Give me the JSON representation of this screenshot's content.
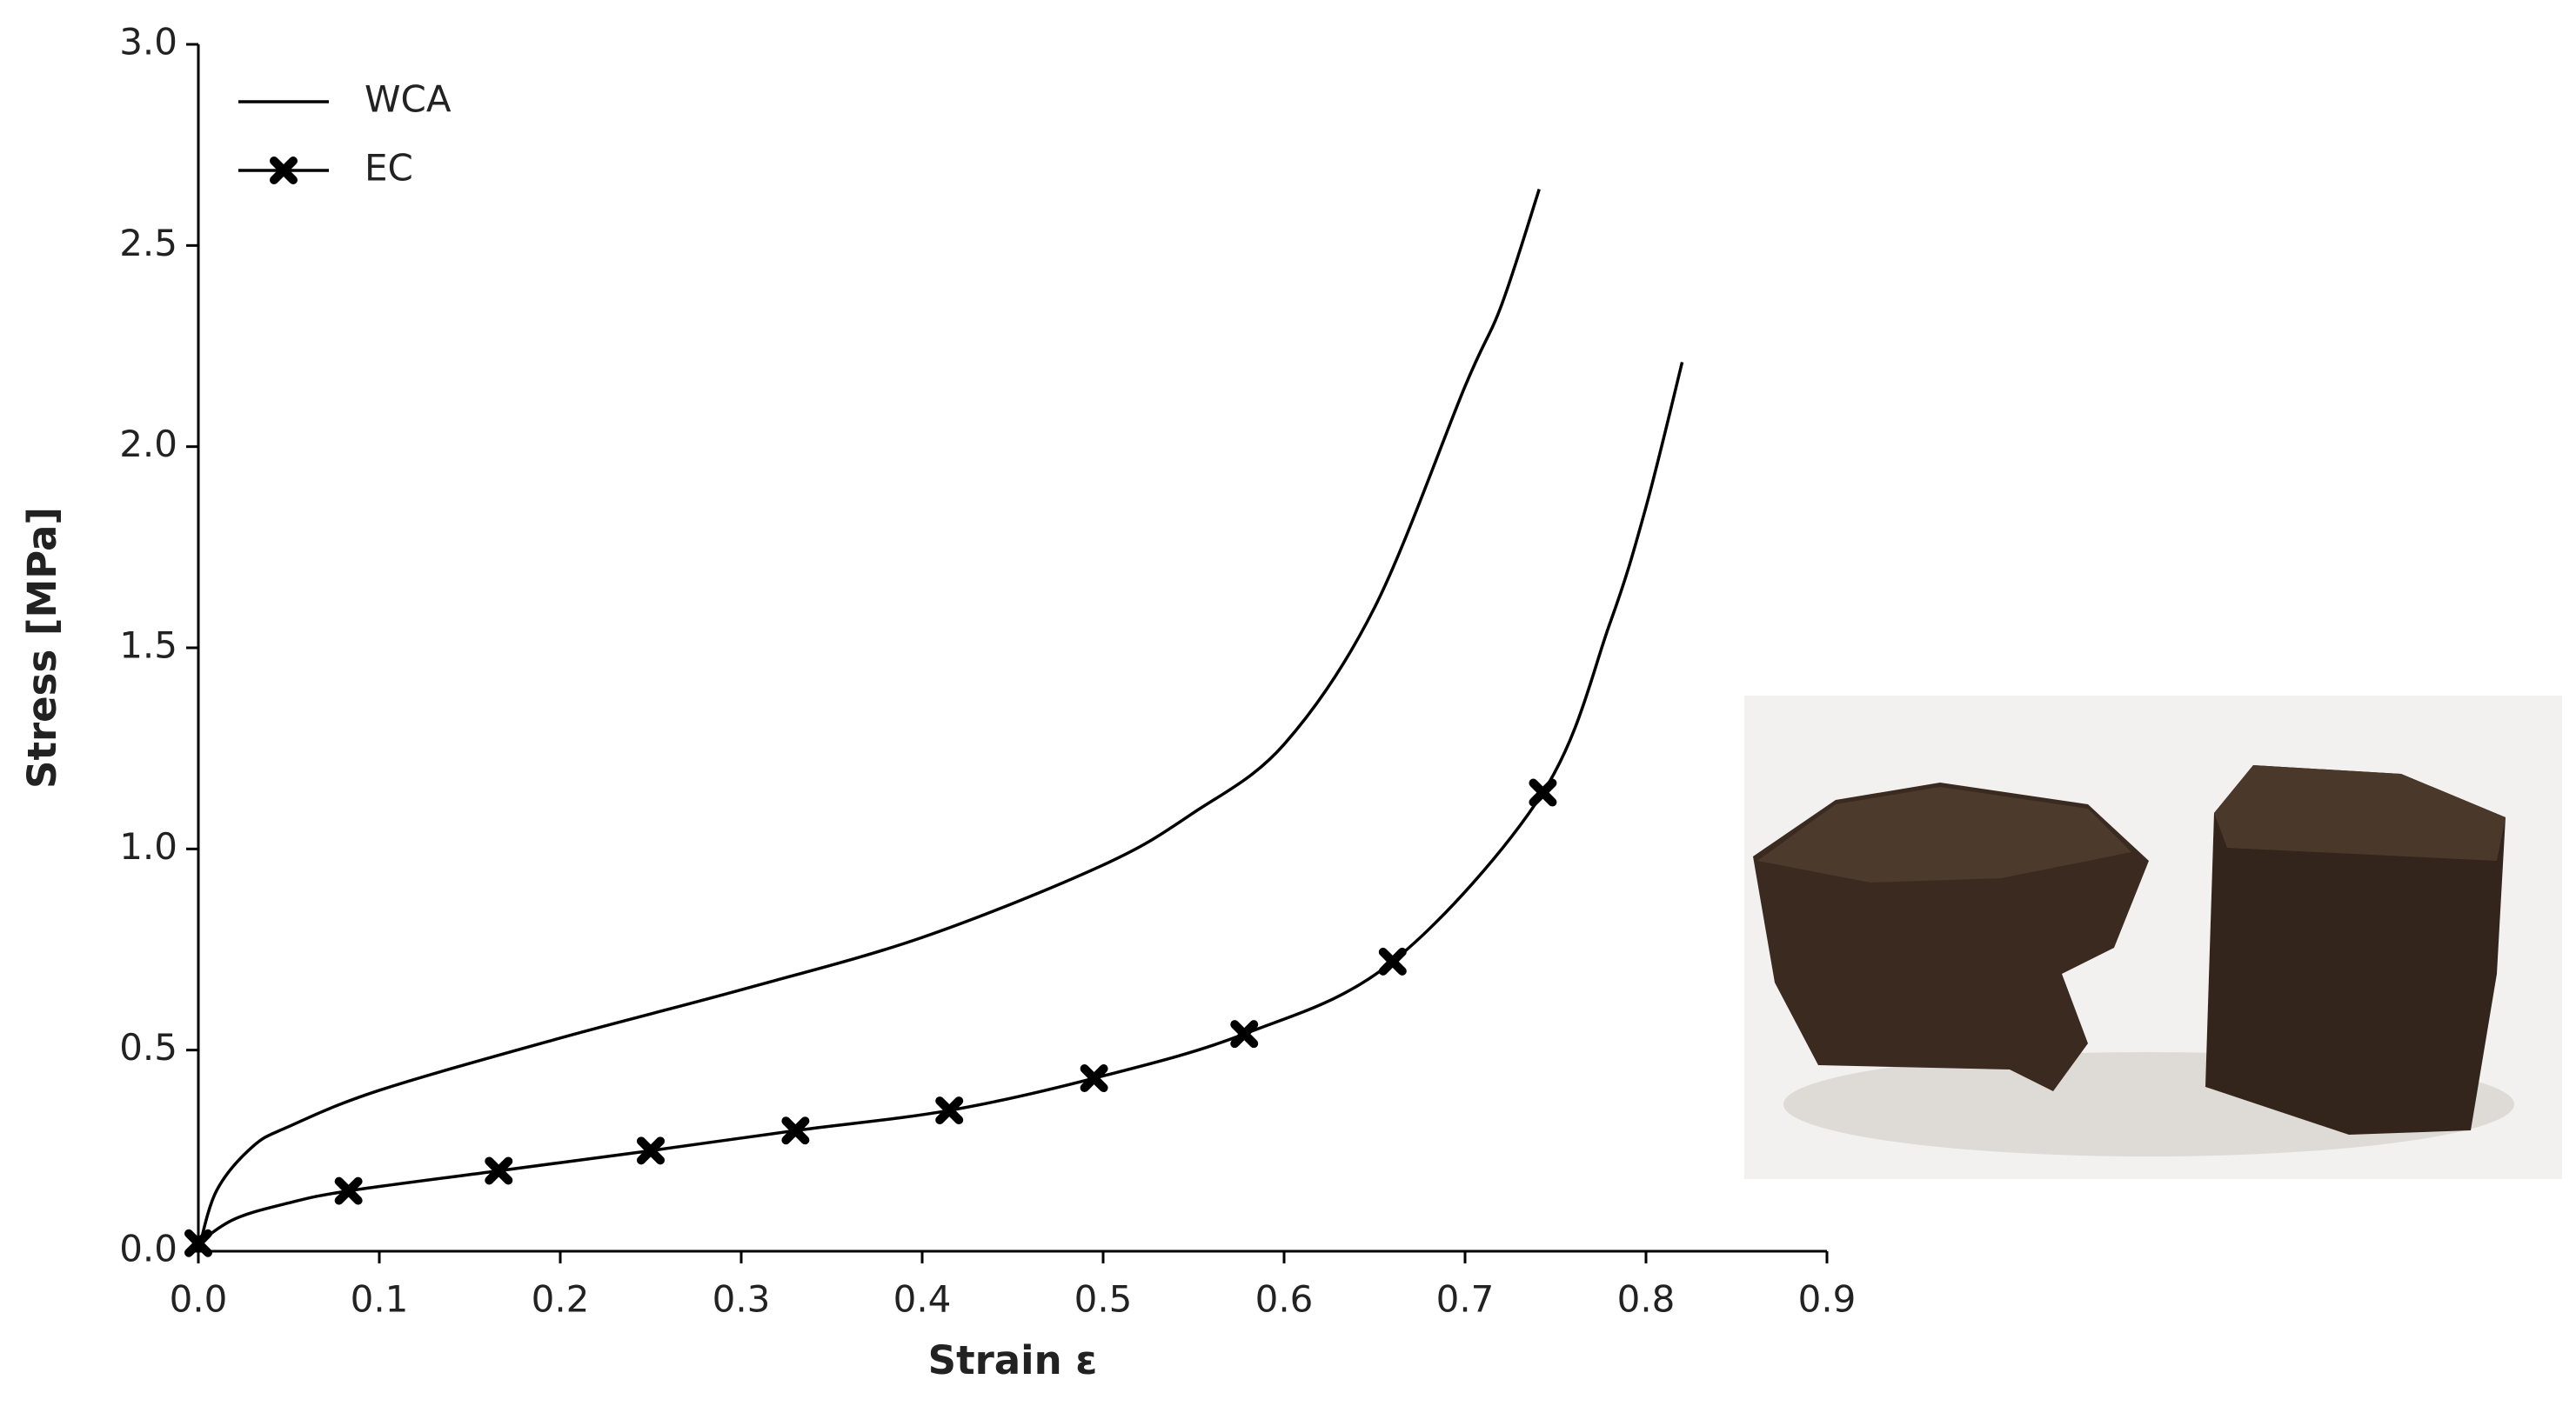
{
  "chart_data": {
    "type": "line",
    "x_label": "Strain ε",
    "y_label": "Stress [MPa]",
    "xlim": [
      0,
      0.9
    ],
    "ylim": [
      0,
      3
    ],
    "xticks": [
      {
        "value": 0,
        "label": "0.0"
      },
      0.1,
      0.2,
      0.3,
      0.4,
      0.5,
      0.6,
      0.7,
      0.8,
      0.9
    ],
    "yticks": [
      {
        "value": 0,
        "label": "0.0"
      },
      0.5,
      {
        "value": 1,
        "label": "1.0"
      },
      1.5,
      {
        "value": 2,
        "label": "2.0"
      },
      2.5,
      {
        "value": 3,
        "label": "3.0"
      }
    ],
    "grid": false,
    "legend": "upper left",
    "series": [
      {
        "name": "WCA",
        "color": "#000000",
        "marker": "none",
        "x": [
          0,
          0.01,
          0.03,
          0.05,
          0.1,
          0.2,
          0.3,
          0.4,
          0.5,
          0.55,
          0.6,
          0.65,
          0.7,
          0.72,
          0.741
        ],
        "values": [
          0,
          0.15,
          0.26,
          0.31,
          0.4,
          0.53,
          0.65,
          0.78,
          0.96,
          1.09,
          1.26,
          1.6,
          2.15,
          2.35,
          2.64
        ]
      },
      {
        "name": "EC",
        "color": "#000000",
        "marker": "X",
        "marker_indices": [
          0,
          3,
          4,
          5,
          6,
          7,
          8,
          9,
          10,
          11
        ],
        "x": [
          0,
          0.02,
          0.05,
          0.083,
          0.166,
          0.25,
          0.33,
          0.415,
          0.495,
          0.578,
          0.66,
          0.743,
          0.78,
          0.8,
          0.82
        ],
        "values": [
          0.02,
          0.08,
          0.12,
          0.15,
          0.2,
          0.25,
          0.3,
          0.35,
          0.43,
          0.54,
          0.72,
          1.14,
          1.56,
          1.85,
          2.21
        ]
      }
    ]
  }
}
